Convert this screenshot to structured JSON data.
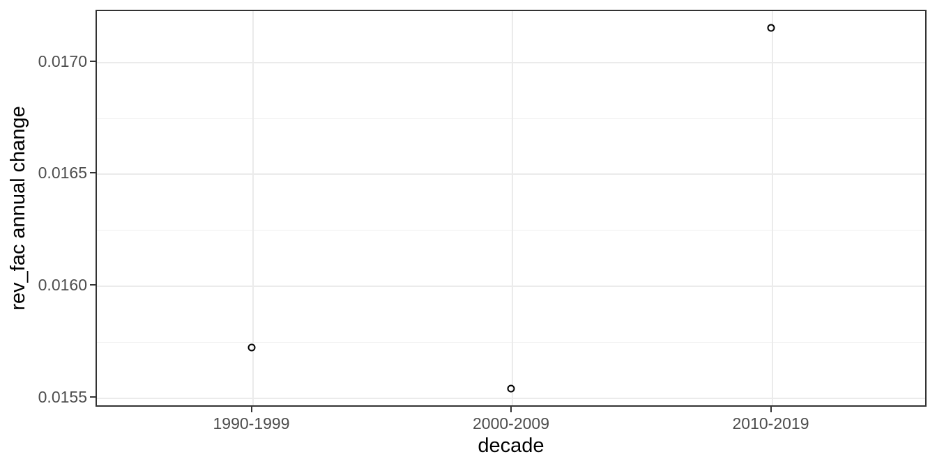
{
  "chart_data": {
    "type": "scatter",
    "title": "",
    "xlabel": "decade",
    "ylabel": "rev_fac annual change",
    "categories": [
      "1990-1999",
      "2000-2009",
      "2010-2019"
    ],
    "series": [
      {
        "name": "rev_fac annual change",
        "values": [
          0.01572,
          0.015535,
          0.01715
        ]
      }
    ],
    "ylim": [
      0.015455,
      0.01723
    ],
    "yticks": [
      {
        "value": 0.0155,
        "label": "0.0155"
      },
      {
        "value": 0.016,
        "label": "0.0160"
      },
      {
        "value": 0.0165,
        "label": "0.0165"
      },
      {
        "value": 0.017,
        "label": "0.0170"
      }
    ],
    "yminor": [
      0.01575,
      0.01625,
      0.01675
    ],
    "grid": {
      "horizontal": "major+minor",
      "vertical": "major-only"
    },
    "legend_position": "none",
    "point_style": "open-circle",
    "colors": {
      "panel_border": "#333333",
      "gridline_major": "#ebebeb",
      "gridline_minor": "#efefef",
      "tick_label": "#4d4d4d",
      "axis_title": "#000000",
      "point_stroke": "#000000",
      "background": "#ffffff"
    }
  }
}
